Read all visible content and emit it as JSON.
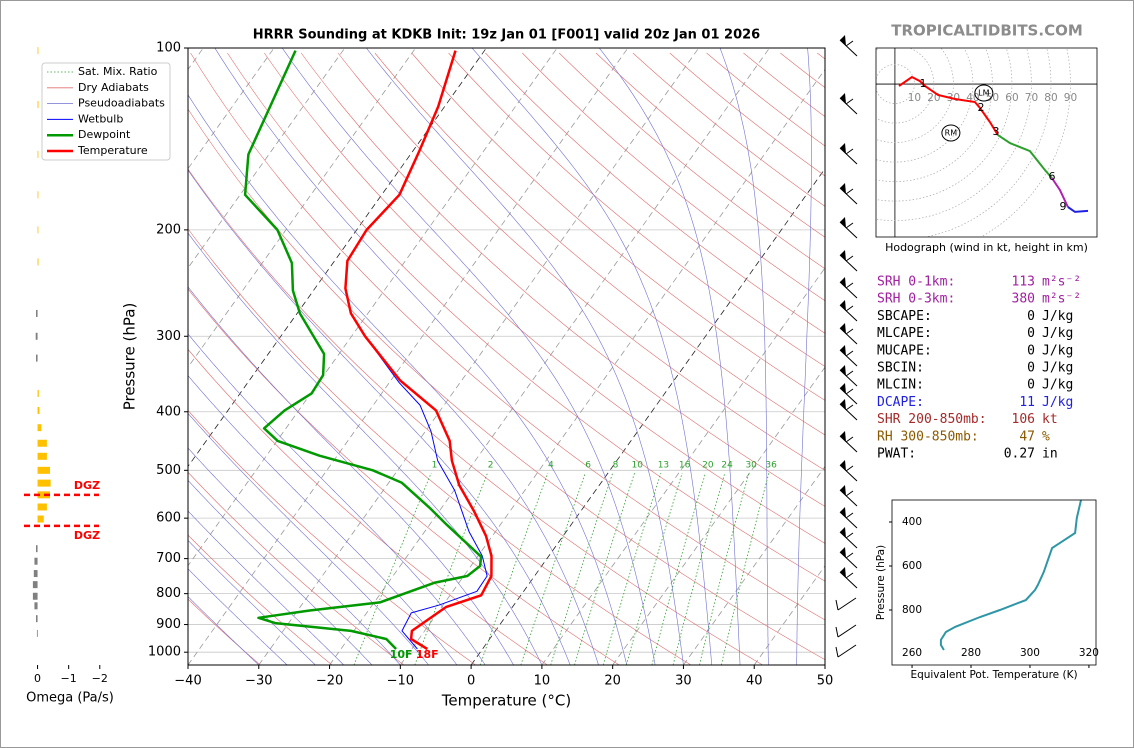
{
  "watermark": "TROPICALTIDBITS.COM",
  "chart_data": [
    {
      "type": "skewt",
      "title": "HRRR Sounding at KDKB Init: 19z Jan 01 [F001] valid 20z Jan 01 2026",
      "xlabel": "Temperature (°C)",
      "ylabel": "Pressure (hPa)",
      "xlim": [
        -40,
        50
      ],
      "ylim": [
        1050,
        100
      ],
      "log_y": true,
      "grid": true,
      "legend": "upper left",
      "xticks": [
        {
          "value": -40,
          "label": "−40"
        },
        {
          "value": -30,
          "label": "−30"
        },
        {
          "value": -20,
          "label": "−20"
        },
        {
          "value": -10,
          "label": "−10"
        },
        0,
        10,
        20,
        30,
        40,
        50
      ],
      "yticks": [
        100,
        200,
        300,
        400,
        500,
        600,
        700,
        800,
        900,
        1000
      ],
      "reference_lines": [
        {
          "name": "Sat. Mix. Ratio",
          "color": "#2ca02c"
        },
        {
          "name": "Dry Adiabats",
          "color": "#e07070"
        },
        {
          "name": "Pseudoadiabats",
          "color": "#7070d0"
        }
      ],
      "mixing_ratio_labels": [
        1,
        2,
        4,
        6,
        8,
        10,
        13,
        16,
        20,
        24,
        30,
        36
      ],
      "series": [
        {
          "name": "Wetbulb",
          "color": "#0000ff",
          "pressure": [
            988,
            922,
            861,
            836,
            793,
            748,
            693,
            632,
            540,
            482,
            431,
            390,
            358,
            300
          ],
          "values": [
            -9.2,
            -13.2,
            -13.7,
            -10.6,
            -6.6,
            -6.7,
            -9.4,
            -13.7,
            -19.9,
            -25.3,
            -29.2,
            -33.4,
            -38.6,
            -48.1
          ]
        },
        {
          "name": "Dewpoint",
          "color": "#009900",
          "pressure": [
            988,
            951,
            922,
            895,
            877,
            853,
            827,
            767,
            748,
            720,
            695,
            615,
            576,
            524,
            500,
            473,
            447,
            426,
            398,
            373,
            348,
            321,
            275,
            252,
            227,
            200,
            175,
            150,
            101
          ],
          "values": [
            -12.2,
            -14.6,
            -20.4,
            -31.9,
            -34.8,
            -28.3,
            -19.2,
            -13.4,
            -9.5,
            -8.7,
            -9.5,
            -17.6,
            -21.8,
            -28.2,
            -33.5,
            -42.5,
            -49.9,
            -53.1,
            -52,
            -49.9,
            -50.1,
            -52.1,
            -59.6,
            -62.9,
            -65.8,
            -71.2,
            -79.3,
            -82.9,
            -86.7
          ]
        },
        {
          "name": "Temperature",
          "color": "#ff0000",
          "pressure": [
            988,
            951,
            922,
            881,
            842,
            805,
            748,
            693,
            642,
            584,
            529,
            482,
            447,
            398,
            355,
            300,
            275,
            250,
            225,
            200,
            175,
            148,
            125,
            101
          ],
          "values": [
            -7.8,
            -11.1,
            -11.8,
            -10.6,
            -9.4,
            -5.6,
            -6.1,
            -8.1,
            -10.9,
            -15.1,
            -19.8,
            -23.3,
            -25.6,
            -30.6,
            -38.7,
            -48.1,
            -52.4,
            -55.7,
            -58.2,
            -58.6,
            -57.5,
            -59.1,
            -60.9,
            -64.1
          ]
        }
      ],
      "surface_labels": [
        {
          "text": "10F",
          "color": "#009900"
        },
        {
          "text": "18F",
          "color": "#ff0000"
        }
      ]
    },
    {
      "type": "omega",
      "xlabel": "Omega (Pa/s)",
      "xlim": [
        0.5,
        -2.2
      ],
      "ylim": [
        1050,
        100
      ],
      "xticks": [
        0,
        {
          "value": -1,
          "label": "−1"
        },
        {
          "value": -2,
          "label": "−2"
        }
      ],
      "pressure": [
        101,
        124,
        150,
        175,
        200,
        226,
        275,
        300,
        326,
        373,
        398,
        425,
        451,
        474,
        500,
        525,
        549,
        575,
        602,
        674,
        707,
        741,
        773,
        808,
        838,
        880,
        931
      ],
      "values": [
        -0.02,
        -0.03,
        -0.02,
        -0.02,
        -0.02,
        -0.03,
        0.05,
        0.06,
        0.05,
        -0.04,
        -0.06,
        -0.12,
        -0.3,
        -0.3,
        -0.4,
        -0.42,
        -0.4,
        -0.3,
        -0.2,
        0.05,
        0.1,
        0.12,
        0.15,
        0.15,
        0.1,
        0.05,
        0.02
      ],
      "colors": {
        "negative": "#ffc000",
        "positive": "#808080"
      },
      "dgz_labels": [
        "DGZ",
        "DGZ"
      ],
      "dgz_pressures": [
        549,
        618
      ],
      "dgz_color": "#ff0000"
    },
    {
      "type": "hodograph",
      "caption": "Hodograph (wind in kt, height in km)",
      "xlim": [
        -9.7,
        103.6
      ],
      "ylim": [
        -78.5,
        18.5
      ],
      "ring_labels": [
        10,
        20,
        30,
        40,
        50,
        60,
        70,
        80,
        90
      ],
      "segments": [
        {
          "color": "#ff0000",
          "u": [
            2.1,
            8.7,
            12.8,
            15.4,
            22.1,
            30.8,
            41.0,
            43.6,
            48.7,
            52.8
          ],
          "v": [
            -1.0,
            3.6,
            1.5,
            -1.0,
            -5.6,
            -7.7,
            -9.2,
            -12.3,
            -19.5,
            -26.2
          ]
        },
        {
          "color": "#2ca02c",
          "u": [
            52.8,
            59.0,
            69.2,
            76.9,
            80.5
          ],
          "v": [
            -26.2,
            -30.3,
            -34.4,
            -44.1,
            -48.2
          ]
        },
        {
          "color": "#b020b0",
          "u": [
            80.5,
            84.6,
            88.7
          ],
          "v": [
            -48.2,
            -54.4,
            -63.1
          ]
        },
        {
          "color": "#2020e0",
          "u": [
            88.7,
            92.3,
            99.0
          ],
          "v": [
            -63.1,
            -65.6,
            -65.1
          ]
        }
      ],
      "height_labels": [
        {
          "text": "1",
          "u": 14.4,
          "v": 0
        },
        {
          "text": "2",
          "u": 44.1,
          "v": -12.3
        },
        {
          "text": "3",
          "u": 51.8,
          "v": -24.6
        },
        {
          "text": "6",
          "u": 80.5,
          "v": -47.7
        },
        {
          "text": "9",
          "u": 86.2,
          "v": -63.1
        }
      ],
      "storm_motions": [
        {
          "label": "RM",
          "u": 28.7,
          "v": -25.1
        },
        {
          "label": "LM",
          "u": 45.6,
          "v": -4.6
        }
      ]
    },
    {
      "type": "line",
      "xlabel": "Equivalent Pot. Temperature (K)",
      "ylabel": "Pressure (hPa)",
      "xlim": [
        253.2,
        322.4
      ],
      "ylim": [
        1050,
        300
      ],
      "xticks": [
        260,
        280,
        300,
        320
      ],
      "yticks": [
        400,
        600,
        800
      ],
      "series": [
        {
          "color": "#2e96a6",
          "pressure": [
            300,
            382,
            450,
            486,
            518,
            573,
            627,
            686,
            709,
            755,
            800,
            832,
            877,
            900,
            936,
            959,
            982
          ],
          "values": [
            317.3,
            315.9,
            315.3,
            311.2,
            307.5,
            306.1,
            304.7,
            302.7,
            301.7,
            298.6,
            289.8,
            283.1,
            274.6,
            271.5,
            269.8,
            269.8,
            270.8
          ]
        }
      ]
    }
  ],
  "indices": {
    "rows": [
      {
        "label": "SRH 0-1km:",
        "value": 113,
        "unit": "m²s⁻²",
        "color": "#a020a0"
      },
      {
        "label": "SRH 0-3km:",
        "value": 380,
        "unit": "m²s⁻²",
        "color": "#a020a0"
      },
      {
        "label": "SBCAPE:",
        "value": 0,
        "unit": "J/kg",
        "color": "#000000"
      },
      {
        "label": "MLCAPE:",
        "value": 0,
        "unit": "J/kg",
        "color": "#000000"
      },
      {
        "label": "MUCAPE:",
        "value": 0,
        "unit": "J/kg",
        "color": "#000000"
      },
      {
        "label": "SBCIN:",
        "value": 0,
        "unit": "J/kg",
        "color": "#000000"
      },
      {
        "label": "MLCIN:",
        "value": 0,
        "unit": "J/kg",
        "color": "#000000"
      },
      {
        "label": "DCAPE:",
        "value": 11,
        "unit": "J/kg",
        "color": "#2020e0"
      },
      {
        "label": "SHR 200-850mb:",
        "value": 106,
        "unit": "kt",
        "color": "#a52a2a"
      },
      {
        "label": "RH 300-850mb:",
        "value": 47,
        "unit": "%",
        "color": "#8b5a00"
      },
      {
        "label": "PWAT:",
        "value": 0.27,
        "unit": "in",
        "color": "#000000"
      }
    ]
  }
}
